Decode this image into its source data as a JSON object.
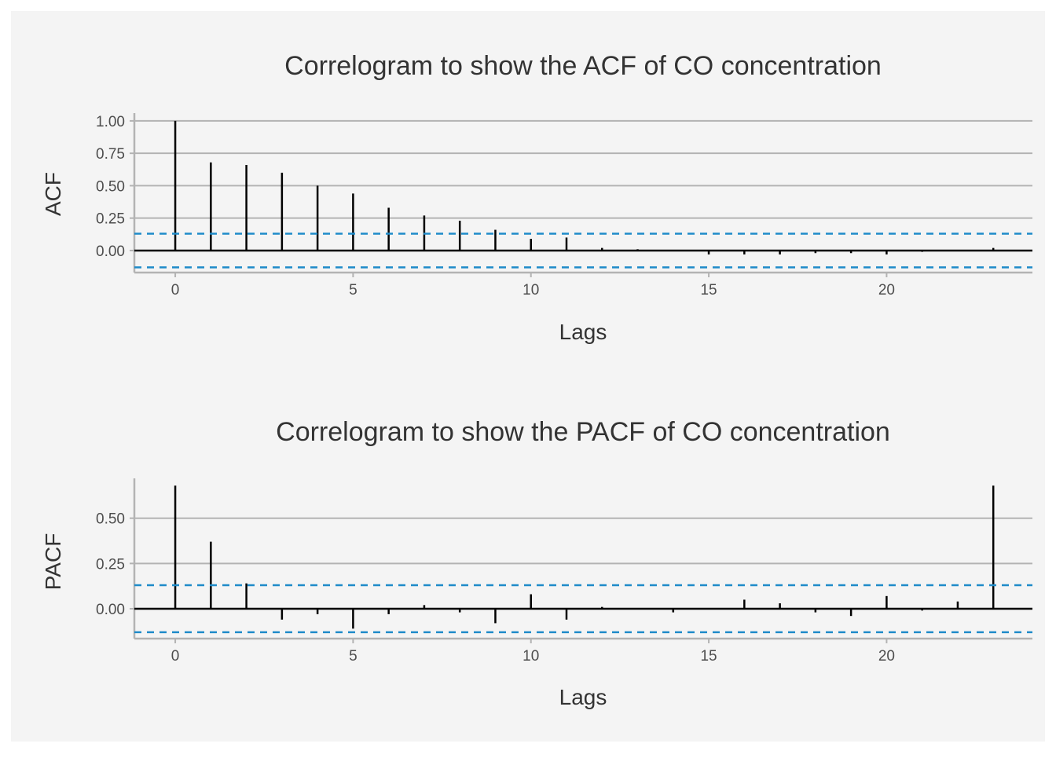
{
  "colors": {
    "background": "#F4F4F4",
    "gridline": "#B3B3B3",
    "stem": "#000000",
    "zero_line": "#000000",
    "confidence_band": "#1F8BC9",
    "text": "#333333"
  },
  "chart_data": [
    {
      "type": "bar",
      "style": "correlogram-stems",
      "title": "Correlogram to show the ACF of CO concentration",
      "xlabel": "Lags",
      "ylabel": "ACF",
      "xlim": [
        -1.15,
        24.1
      ],
      "ylim": [
        -0.17,
        1.06
      ],
      "x_ticks": [
        0,
        5,
        10,
        15,
        20
      ],
      "x_tick_labels": [
        "0",
        "5",
        "10",
        "15",
        "20"
      ],
      "y_ticks": [
        0,
        0.25,
        0.5,
        0.75,
        1.0
      ],
      "y_tick_labels": [
        "0.00",
        "0.25",
        "0.50",
        "0.75",
        "1.00"
      ],
      "confidence_bound": 0.13,
      "grid": "horizontal major only",
      "x": [
        0,
        1,
        2,
        3,
        4,
        5,
        6,
        7,
        8,
        9,
        10,
        11,
        12,
        13,
        14,
        15,
        16,
        17,
        18,
        19,
        20,
        21,
        22,
        23
      ],
      "values": [
        1.0,
        0.68,
        0.66,
        0.6,
        0.5,
        0.44,
        0.33,
        0.27,
        0.23,
        0.16,
        0.09,
        0.1,
        0.02,
        0.01,
        0.0,
        -0.03,
        -0.03,
        -0.03,
        -0.02,
        -0.02,
        -0.03,
        -0.01,
        0.0,
        0.02
      ]
    },
    {
      "type": "bar",
      "style": "correlogram-stems",
      "title": "Correlogram to show the PACF of CO concentration",
      "xlabel": "Lags",
      "ylabel": "PACF",
      "xlim": [
        -1.15,
        24.1
      ],
      "ylim": [
        -0.165,
        0.72
      ],
      "x_ticks": [
        0,
        5,
        10,
        15,
        20
      ],
      "x_tick_labels": [
        "0",
        "5",
        "10",
        "15",
        "20"
      ],
      "y_ticks": [
        0,
        0.25,
        0.5
      ],
      "y_tick_labels": [
        "0.00",
        "0.25",
        "0.50"
      ],
      "confidence_bound": 0.13,
      "grid": "horizontal major only",
      "x": [
        0,
        1,
        2,
        3,
        4,
        5,
        6,
        7,
        8,
        9,
        10,
        11,
        12,
        13,
        14,
        15,
        16,
        17,
        18,
        19,
        20,
        21,
        22,
        23
      ],
      "values": [
        0.68,
        0.37,
        0.14,
        -0.06,
        -0.03,
        -0.11,
        -0.03,
        0.02,
        -0.02,
        -0.08,
        0.08,
        -0.06,
        0.01,
        0.0,
        -0.02,
        0.0,
        0.05,
        0.03,
        -0.02,
        -0.04,
        0.07,
        -0.01,
        0.04,
        0.68
      ]
    }
  ]
}
